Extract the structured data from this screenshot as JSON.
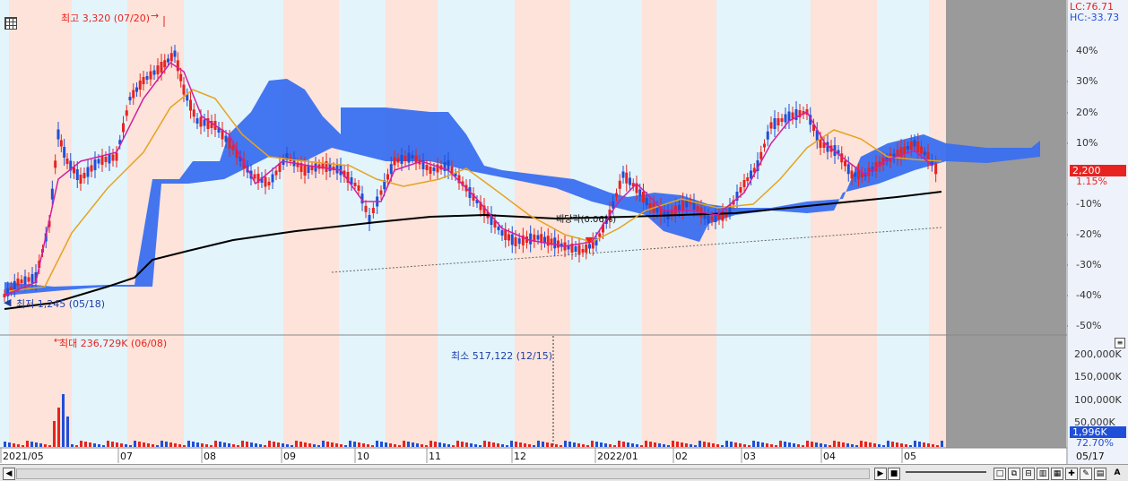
{
  "main_chart": {
    "high_label": "최고 3,320 (07/20)",
    "low_label": "최저 1,245 (05/18)",
    "dividend_label": "배당락(0.06%)",
    "y_axis_labels": [
      "40%",
      "30%",
      "20%",
      "10%",
      "-10%",
      "-20%",
      "-30%",
      "-40%",
      "-50%"
    ],
    "lc_label": "LC:76.71",
    "hc_label": "HC:-33.73",
    "price_tag": "2,200",
    "pct_tag": "1.15%",
    "colors": {
      "up": "#e8231f",
      "down": "#1f4fd8",
      "cloud": "#3a6ff0",
      "ma_short": "#d21fa0",
      "ma_mid": "#e6a320",
      "ma_long": "#000000"
    }
  },
  "volume_chart": {
    "max_label": "최대 236,729K (06/08)",
    "min_label": "최소 517,122 (12/15)",
    "y_axis_labels": [
      "200,000K",
      "150,000K",
      "100,000K",
      "50,000K"
    ],
    "vol_tag": "1,996K",
    "vol_pct_tag": "72.70%"
  },
  "x_axis": {
    "dates": [
      "2021/05",
      "07",
      "08",
      "09",
      "10",
      "11",
      "12",
      "2022/01",
      "02",
      "03",
      "04",
      "05"
    ],
    "right_date": "05/17"
  },
  "toolbar": {
    "nav_left": "◀",
    "stop": "■",
    "play": "▶",
    "font": "A"
  }
}
